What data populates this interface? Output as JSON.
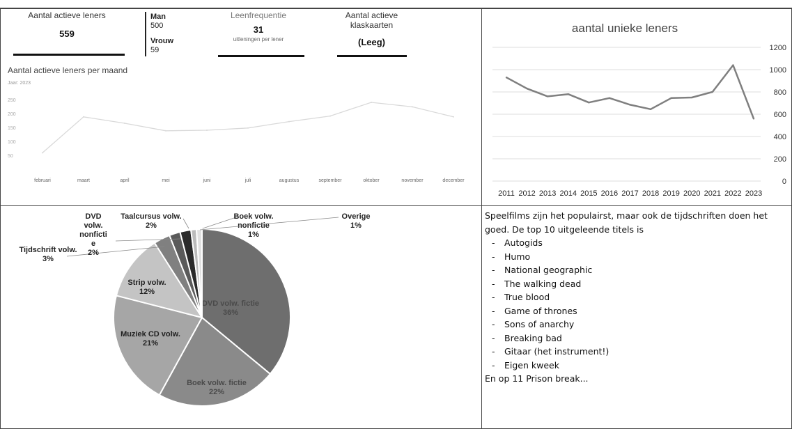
{
  "kpis": {
    "active_label": "Aantal actieve leners",
    "active_value": "559",
    "man_label": "Man",
    "man_value": "500",
    "vrouw_label": "Vrouw",
    "vrouw_value": "59",
    "freq_label": "Leenfrequentie",
    "freq_value": "31",
    "freq_sub": "uitleningen per lener",
    "klas_label_1": "Aantal actieve",
    "klas_label_2": "klaskaarten",
    "klas_value": "(Leeg)"
  },
  "text_panel": {
    "intro": "Speelfilms zijn het populairst, maar ook de tijdschriften doen het goed. De top 10 uitgeleende titels is",
    "items": [
      "Autogids",
      "Humo",
      "National geographic",
      "The walking dead",
      "True blood",
      "Game of thrones",
      "Sons of anarchy",
      "Breaking bad",
      "Gitaar (het instrument!)",
      "Eigen kweek"
    ],
    "outro": "En op 11 Prison break..."
  },
  "chart_data": [
    {
      "type": "line",
      "title": "Aantal actieve leners per maand",
      "subtitle": "Jaar: 2023",
      "categories": [
        "februari",
        "maart",
        "april",
        "mei",
        "juni",
        "juli",
        "augustus",
        "september",
        "oktober",
        "november",
        "december"
      ],
      "values": [
        59,
        188,
        165,
        138,
        140,
        148,
        171,
        191,
        240,
        224,
        188
      ],
      "yticks": [
        50,
        100,
        150,
        200,
        250
      ],
      "ylim": [
        50,
        250
      ],
      "color": "#d9d9d9"
    },
    {
      "type": "line",
      "title": "aantal unieke leners",
      "categories": [
        "2011",
        "2012",
        "2013",
        "2014",
        "2015",
        "2016",
        "2017",
        "2018",
        "2019",
        "2020",
        "2021",
        "2022",
        "2023"
      ],
      "values": [
        930,
        830,
        760,
        780,
        705,
        745,
        685,
        645,
        745,
        750,
        800,
        1040,
        560
      ],
      "yticks": [
        0,
        200,
        400,
        600,
        800,
        1000,
        1200
      ],
      "ylim": [
        0,
        1200
      ],
      "grid": true,
      "color": "#7f7f7f"
    },
    {
      "type": "pie",
      "slices": [
        {
          "label": "DVD volw. fictie",
          "pct": "36%",
          "value": 36,
          "color": "#6e6e6e"
        },
        {
          "label": "Boek volw. fictie",
          "pct": "22%",
          "value": 22,
          "color": "#8a8a8a"
        },
        {
          "label": "Muziek CD volw.",
          "pct": "21%",
          "value": 21,
          "color": "#a6a6a6"
        },
        {
          "label": "Strip volw.",
          "pct": "12%",
          "value": 12,
          "color": "#c4c4c4"
        },
        {
          "label": "Tijdschrift volw.",
          "pct": "3%",
          "value": 3,
          "color": "#808080"
        },
        {
          "label": "DVD volw. nonfictie",
          "pct": "2%",
          "value": 2,
          "color": "#5a5a5a"
        },
        {
          "label": "Taalcursus volw.",
          "pct": "2%",
          "value": 2,
          "color": "#2a2a2a"
        },
        {
          "label": "Boek volw. nonfictie",
          "pct": "1%",
          "value": 1,
          "color": "#bbbbbb"
        },
        {
          "label": "Overige",
          "pct": "1%",
          "value": 1,
          "color": "#e0e0e0"
        }
      ]
    }
  ]
}
